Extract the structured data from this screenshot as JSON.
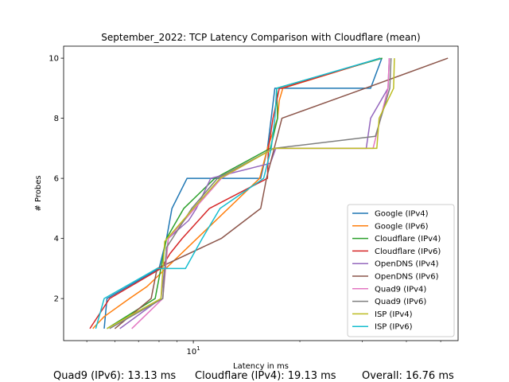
{
  "chart_data": {
    "type": "line",
    "title": "September_2022: TCP Latency Comparison with Cloudflare (mean)",
    "xlabel": "Latency in ms",
    "ylabel": "# Probes",
    "xscale": "log",
    "xlim": [
      4.3,
      56
    ],
    "ylim": [
      0.6,
      10.4
    ],
    "x_tick_labels": [
      {
        "value": 10,
        "label": "10^1"
      }
    ],
    "y_ticks": [
      2,
      4,
      6,
      8,
      10
    ],
    "grid": false,
    "legend_position": "lower right",
    "series": [
      {
        "name": "Google (IPv4)",
        "color": "#1f77b4",
        "x": [
          5.6,
          5.7,
          8.0,
          8.4,
          8.7,
          9.6,
          15.5,
          16.2,
          16.6,
          17.0,
          17.2,
          30.2,
          30.5,
          31.7,
          34.1
        ],
        "y": [
          1,
          2,
          3,
          4,
          5,
          6,
          6,
          7,
          8,
          9,
          9,
          9,
          9,
          9,
          10
        ]
      },
      {
        "name": "Google (IPv6)",
        "color": "#ff7f0e",
        "x": [
          5.2,
          5.6,
          6.6,
          7.4,
          15.4,
          16.2,
          17.3,
          17.5,
          17.9,
          33.8
        ],
        "y": [
          1,
          1.4,
          2,
          2.4,
          6,
          7,
          8,
          8.6,
          9,
          10
        ]
      },
      {
        "name": "Cloudflare (IPv4)",
        "color": "#2ca02c",
        "x": [
          5.7,
          7.8,
          8.4,
          9.4,
          11.5,
          16.5,
          17.3,
          17.2,
          34.2
        ],
        "y": [
          1,
          2,
          4,
          5,
          6,
          7,
          8,
          9,
          10
        ]
      },
      {
        "name": "Cloudflare (IPv6)",
        "color": "#d62728",
        "x": [
          5.1,
          5.8,
          8.1,
          8.6,
          9.3,
          11.1,
          16.2,
          16.3,
          16.8,
          17.5,
          17.8,
          33.7
        ],
        "y": [
          1,
          2,
          3,
          3.5,
          4,
          5,
          6,
          7,
          8,
          9,
          9,
          10
        ]
      },
      {
        "name": "OpenDNS (IPv4)",
        "color": "#9467bd",
        "x": [
          6.2,
          8.1,
          8.5,
          9.7,
          10.2,
          11.2,
          16.5,
          17.1,
          30.8,
          31.7,
          35.5,
          35.8
        ],
        "y": [
          1,
          2,
          4,
          4.6,
          5,
          6,
          6.5,
          7,
          7,
          8,
          9,
          10
        ]
      },
      {
        "name": "OpenDNS (IPv6)",
        "color": "#8c564b",
        "x": [
          6.0,
          7.6,
          7.9,
          12.0,
          15.5,
          16.1,
          17.8,
          30.6,
          52.4
        ],
        "y": [
          1,
          2,
          3,
          4,
          5,
          6,
          8,
          9,
          10
        ]
      },
      {
        "name": "Quad9 (IPv4)",
        "color": "#e377c2",
        "x": [
          6.7,
          8.2,
          8.5,
          10.1,
          12.0,
          16.8,
          32.2,
          35.5,
          35.8
        ],
        "y": [
          1,
          2,
          4,
          5,
          6,
          7,
          7,
          9,
          10
        ]
      },
      {
        "name": "Quad9 (IPv6)",
        "color": "#7f7f7f",
        "x": [
          5.8,
          8.2,
          8.4,
          9.9,
          11.7,
          16.9,
          32.7,
          35.9,
          36.2
        ],
        "y": [
          1,
          2,
          3.7,
          5,
          6,
          7,
          7.4,
          9,
          10
        ]
      },
      {
        "name": "ISP (IPv4)",
        "color": "#bcbd22",
        "x": [
          5.7,
          8.1,
          8.3,
          10.0,
          11.9,
          16.9,
          33.0,
          33.5,
          36.8,
          37.0
        ],
        "y": [
          1,
          2,
          3.9,
          5,
          6,
          7,
          7,
          8,
          9,
          10
        ]
      },
      {
        "name": "ISP (IPv6)",
        "color": "#17becf",
        "x": [
          5.3,
          5.6,
          7.9,
          9.5,
          10.6,
          11.9,
          15.8,
          16.6,
          17.0,
          17.2,
          33.8
        ],
        "y": [
          1,
          2,
          3,
          3,
          4,
          5,
          6,
          7,
          8,
          9,
          10
        ]
      }
    ]
  },
  "footer": {
    "quad9_ipv6": "Quad9 (IPv6): 13.13 ms",
    "cloudflare_ipv4": "Cloudflare (IPv4): 19.13 ms",
    "overall": "Overall: 16.76 ms"
  }
}
